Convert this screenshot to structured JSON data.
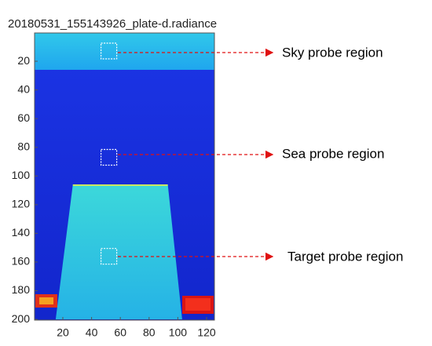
{
  "title": "20180531_155143926_plate-d.radiance",
  "y_axis": {
    "ticks": [
      20,
      40,
      60,
      80,
      100,
      120,
      140,
      160,
      180,
      200
    ]
  },
  "x_axis": {
    "ticks": [
      20,
      40,
      60,
      80,
      100,
      120
    ]
  },
  "annotations": [
    {
      "label": "Sky probe region"
    },
    {
      "label": "Sea probe region"
    },
    {
      "label": "Target probe region"
    }
  ]
}
